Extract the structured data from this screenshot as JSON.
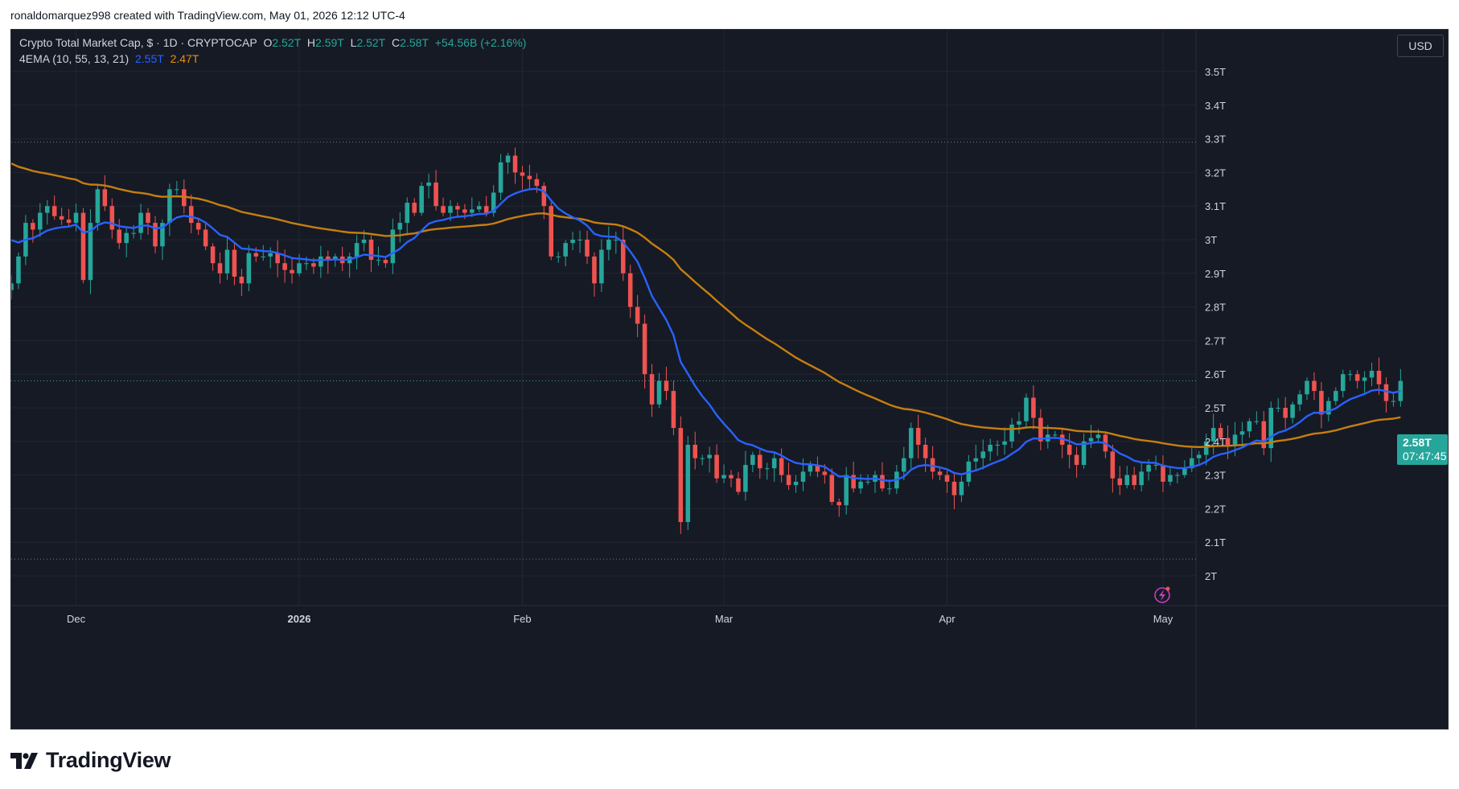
{
  "caption": "ronaldomarquez998 created with TradingView.com, May 01, 2026 12:12 UTC-4",
  "legend": {
    "symbol": "Crypto Total Market Cap, $ · 1D · CRYPTOCAP",
    "o_label": "O",
    "o_value": "2.52T",
    "h_label": "H",
    "h_value": "2.59T",
    "l_label": "L",
    "l_value": "2.52T",
    "c_label": "C",
    "c_value": "2.58T",
    "change": "+54.56B (+2.16%)",
    "indicator": "4EMA (10, 55, 13, 21)",
    "ema_fast_value": "2.55T",
    "ema_slow_value": "2.47T"
  },
  "currency_button": "USD",
  "price_tag": {
    "value": "2.58T",
    "countdown": "07:47:45"
  },
  "logo_text": "TradingView",
  "colors": {
    "background": "#161a25",
    "grid": "#232632",
    "up": "#26a69a",
    "down": "#ef5350",
    "ema_fast": "#2962ff",
    "ema_slow": "#c67f0e",
    "text": "#d1d4dc"
  },
  "chart_data": {
    "type": "candlestick",
    "y_axis": {
      "min": 1.9,
      "max": 3.6,
      "ticks": [
        2.0,
        2.1,
        2.2,
        2.3,
        2.4,
        2.5,
        2.6,
        2.7,
        2.8,
        2.9,
        3.0,
        3.1,
        3.2,
        3.3,
        3.4,
        3.5
      ],
      "tick_labels": [
        "2T",
        "2.1T",
        "2.2T",
        "2.3T",
        "2.4T",
        "2.5T",
        "2.6T",
        "2.7T",
        "2.8T",
        "2.9T",
        "3T",
        "3.1T",
        "3.2T",
        "3.3T",
        "3.4T",
        "3.5T"
      ],
      "position": "right"
    },
    "x_axis": {
      "start_date": "2025-11-22",
      "end_date": "2026-05-01",
      "labels": [
        {
          "date": "2025-12-01",
          "text": "Dec"
        },
        {
          "date": "2026-01-01",
          "text": "2026"
        },
        {
          "date": "2026-02-01",
          "text": "Feb"
        },
        {
          "date": "2026-03-01",
          "text": "Mar"
        },
        {
          "date": "2026-04-01",
          "text": "Apr"
        },
        {
          "date": "2026-05-01",
          "text": "May"
        }
      ]
    },
    "current_price": 2.58,
    "dotted_levels": [
      3.29,
      2.05
    ],
    "series": [
      {
        "name": "Crypto Total Market Cap",
        "kind": "ohlc",
        "close": [
          2.87,
          2.95,
          3.05,
          3.03,
          3.08,
          3.1,
          3.07,
          3.06,
          3.05,
          3.08,
          2.88,
          3.05,
          3.15,
          3.1,
          3.03,
          2.99,
          3.02,
          3.02,
          3.08,
          3.05,
          2.98,
          3.05,
          3.15,
          3.15,
          3.1,
          3.05,
          3.03,
          2.98,
          2.93,
          2.9,
          2.97,
          2.89,
          2.87,
          2.96,
          2.95,
          2.95,
          2.96,
          2.93,
          2.91,
          2.9,
          2.93,
          2.93,
          2.92,
          2.95,
          2.94,
          2.95,
          2.93,
          2.95,
          2.99,
          3.0,
          2.94,
          2.94,
          2.93,
          3.03,
          3.05,
          3.11,
          3.08,
          3.16,
          3.17,
          3.1,
          3.08,
          3.1,
          3.09,
          3.08,
          3.09,
          3.1,
          3.08,
          3.14,
          3.23,
          3.25,
          3.2,
          3.19,
          3.18,
          3.16,
          3.1,
          2.95,
          2.95,
          2.99,
          3.0,
          3.0,
          2.95,
          2.87,
          2.97,
          3.0,
          3.0,
          2.9,
          2.8,
          2.75,
          2.6,
          2.51,
          2.58,
          2.55,
          2.44,
          2.16,
          2.39,
          2.35,
          2.35,
          2.36,
          2.29,
          2.3,
          2.29,
          2.25,
          2.33,
          2.36,
          2.32,
          2.32,
          2.35,
          2.3,
          2.27,
          2.28,
          2.31,
          2.33,
          2.31,
          2.3,
          2.22,
          2.21,
          2.3,
          2.26,
          2.28,
          2.28,
          2.3,
          2.26,
          2.26,
          2.31,
          2.35,
          2.44,
          2.39,
          2.35,
          2.31,
          2.3,
          2.28,
          2.24,
          2.28,
          2.34,
          2.35,
          2.37,
          2.39,
          2.39,
          2.4,
          2.45,
          2.46,
          2.53,
          2.47,
          2.4,
          2.42,
          2.42,
          2.39,
          2.36,
          2.33,
          2.4,
          2.41,
          2.42,
          2.37,
          2.29,
          2.27,
          2.3,
          2.27,
          2.31,
          2.33,
          2.33,
          2.28,
          2.3,
          2.3,
          2.32,
          2.35,
          2.36,
          2.4,
          2.44,
          2.41,
          2.39,
          2.42,
          2.43,
          2.46,
          2.46,
          2.38,
          2.5,
          2.5,
          2.47,
          2.51,
          2.54,
          2.58,
          2.55,
          2.48,
          2.52,
          2.55,
          2.6,
          2.6,
          2.58,
          2.59,
          2.61,
          2.57,
          2.52,
          2.52,
          2.58
        ]
      },
      {
        "name": "EMA",
        "kind": "line",
        "color": "#2962ff",
        "value_label": "2.55T"
      },
      {
        "name": "EMA",
        "kind": "line",
        "color": "#c67f0e",
        "value_label": "2.47T"
      }
    ]
  }
}
